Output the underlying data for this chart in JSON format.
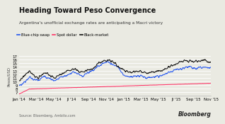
{
  "title": "Heading Toward Peso Convergence",
  "subtitle": "Argentina's unofficial exchange rates are anticipating a Macri victory",
  "legend": [
    "Blue-chip swap",
    "Spot dollar",
    "Black-market"
  ],
  "legend_colors": [
    "#2255ee",
    "#ff3366",
    "#111111"
  ],
  "ylabel": "Pesos/USD",
  "source": "Source: Bloomberg, Ambito.com",
  "watermark": "Bloomberg",
  "ylim": [
    6,
    17
  ],
  "yticks": [
    7,
    8,
    9,
    10,
    11,
    12,
    13,
    14,
    15,
    16,
    17
  ],
  "x_labels": [
    "Jan '14",
    "Mar '14",
    "May '14",
    "Jl '14",
    "Sep '14",
    "Nov '14",
    "Jan '15",
    "Mar '15",
    "May '15",
    "Jl '15",
    "Sep '15",
    "Nov '15"
  ],
  "bg_color": "#eaeae2",
  "plot_bg": "#eaeae2",
  "grid_color": "#ffffff",
  "title_fontsize": 7.0,
  "subtitle_fontsize": 4.2,
  "legend_fontsize": 3.8,
  "tick_fontsize": 4.0,
  "ylabel_fontsize": 3.8,
  "source_fontsize": 3.5,
  "watermark_fontsize": 5.5
}
